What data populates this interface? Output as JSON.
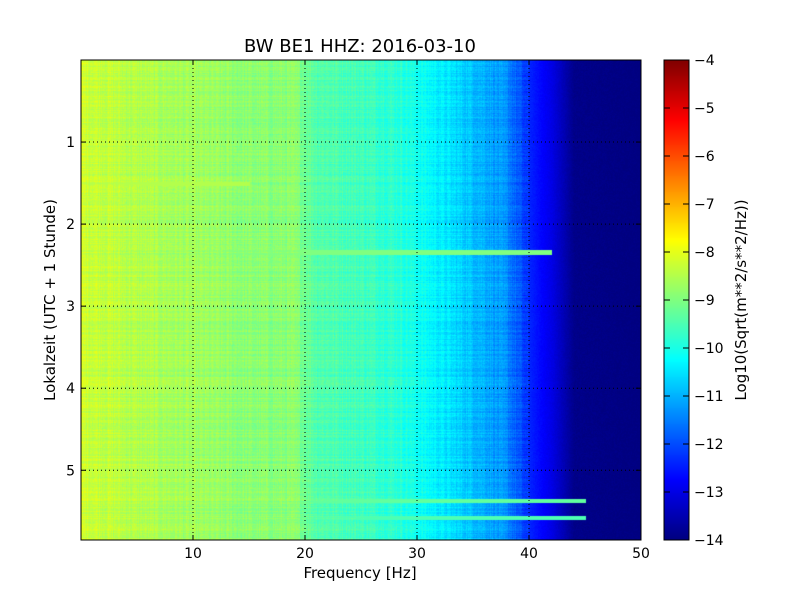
{
  "chart_data": {
    "type": "heatmap",
    "title": "BW BE1 HHZ: 2016-03-10",
    "xlabel": "Frequency [Hz]",
    "ylabel": "Lokalzeit (UTC + 1 Stunde)",
    "xlim": [
      0,
      50
    ],
    "ylim": [
      5.85,
      0.0
    ],
    "x_ticks": [
      10,
      20,
      30,
      40,
      50
    ],
    "y_ticks": [
      1,
      2,
      3,
      4,
      5
    ],
    "grid": true,
    "colormap": "jet",
    "colorbar": {
      "label": "Log10(Sqrt(m**2/s**2/Hz))",
      "range": [
        -14,
        -4
      ],
      "ticks": [
        -4,
        -5,
        -6,
        -7,
        -8,
        -9,
        -10,
        -11,
        -12,
        -13,
        -14
      ]
    },
    "frequency_profile": {
      "freq_hz": [
        0,
        5,
        10,
        15,
        19,
        21,
        25,
        28,
        30,
        32,
        34,
        36,
        38,
        40,
        42,
        44,
        50
      ],
      "log10_psd": [
        -8.2,
        -8.5,
        -8.7,
        -8.9,
        -8.9,
        -9.4,
        -9.6,
        -9.8,
        -10.1,
        -10.4,
        -10.7,
        -11.0,
        -11.4,
        -12.4,
        -13.0,
        -13.9,
        -14.0
      ]
    },
    "time_events": [
      {
        "time_h": 1.5,
        "freq_range_hz": [
          0,
          15
        ],
        "log10_psd": -8.5
      },
      {
        "time_h": 2.34,
        "freq_range_hz": [
          0,
          42
        ],
        "log10_psd": -9.0
      },
      {
        "time_h": 5.37,
        "freq_range_hz": [
          10,
          45
        ],
        "log10_psd": -9.3
      },
      {
        "time_h": 5.58,
        "freq_range_hz": [
          10,
          45
        ],
        "log10_psd": -9.5
      }
    ]
  },
  "colors": {
    "axes_frame": "#000000",
    "grid": "#000000"
  }
}
